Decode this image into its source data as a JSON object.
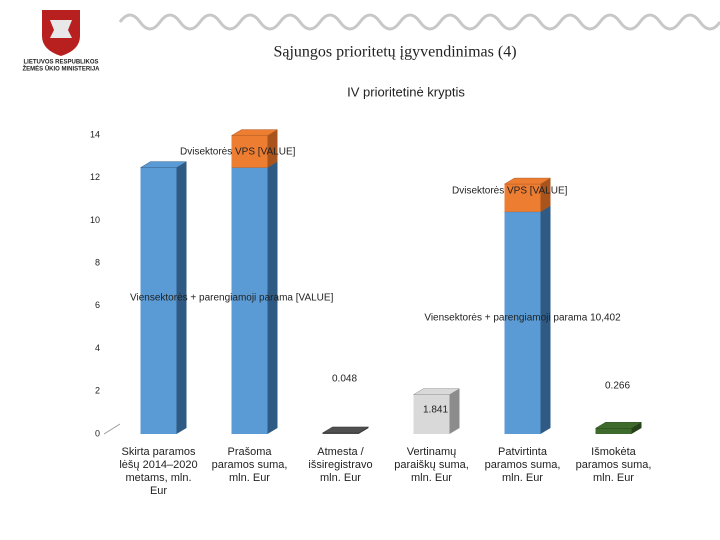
{
  "header": {
    "ministry": [
      "LIETUVOS RESPUBLIKOS",
      "ŽEMĖS ŪKIO MINISTERIJA"
    ],
    "title": "Sąjungos prioritetų įgyvendinimas (4)"
  },
  "chart_data": {
    "type": "bar",
    "stacked": true,
    "title": "IV prioritetinė kryptis",
    "categories": [
      "Skirta paramos lėšų 2014–2020 metams, mln. Eur",
      "Prašoma paramos suma, mln. Eur",
      "Atmesta / išsiregistravo mln. Eur",
      "Vertinamų paraiškų suma, mln. Eur",
      "Patvirtinta paramos suma, mln. Eur",
      "Išmokėta paramos suma, mln. Eur"
    ],
    "series": [
      {
        "name": "Viensektorės + parengiamoji parama",
        "color": "#5b9bd5",
        "side": "#2e5a84",
        "values": [
          12.47,
          12.47,
          null,
          null,
          10.402,
          null
        ],
        "value_labels": [
          null,
          null,
          null,
          null,
          "Viensektorės + parengiamoji parama 10,402",
          null
        ]
      },
      {
        "name": "Dvisektorės VPS",
        "color": "#ed7d31",
        "side": "#a9541c",
        "values": [
          null,
          1.5,
          null,
          null,
          1.3,
          null
        ]
      },
      {
        "color": "#505050",
        "side": "#303030",
        "values": [
          null,
          null,
          0.048,
          null,
          null,
          null
        ]
      },
      {
        "color": "#d9d9d9",
        "side": "#8c8c8c",
        "values": [
          null,
          null,
          null,
          1.841,
          null,
          null
        ]
      },
      {
        "color": "#3e6b2c",
        "side": "#25421a",
        "values": [
          null,
          null,
          null,
          null,
          null,
          0.266
        ]
      }
    ],
    "annotations": [
      "Dvisektorės VPS [VALUE]",
      "Dvisektorės VPS [VALUE]",
      "Viensektorės + parengiamoji parama [VALUE]"
    ],
    "ylim": [
      0,
      14
    ],
    "yticks": [
      0,
      2,
      4,
      6,
      8,
      10,
      12,
      14
    ],
    "grid": false
  }
}
